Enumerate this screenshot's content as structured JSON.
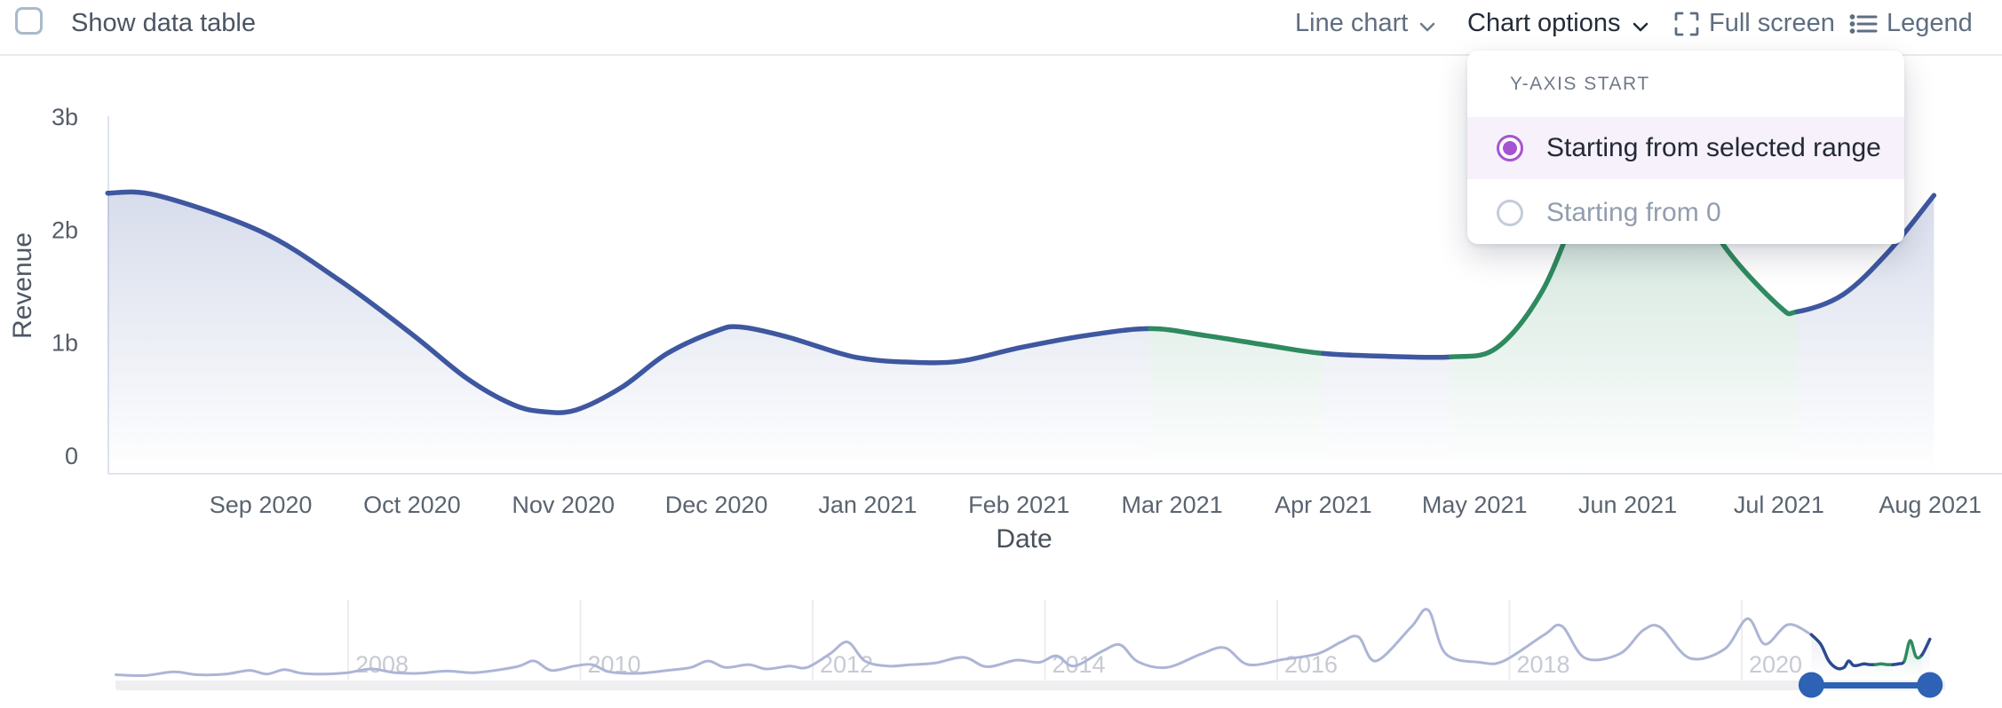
{
  "header": {
    "show_data_table": "Show data table",
    "line_chart": "Line chart",
    "chart_options": "Chart options",
    "full_screen": "Full screen",
    "legend": "Legend"
  },
  "dropdown": {
    "title": "Y-AXIS START",
    "options": [
      {
        "label": "Starting from selected range",
        "selected": true
      },
      {
        "label": "Starting from 0",
        "selected": false
      }
    ],
    "accent_color": "#a653d2"
  },
  "chart_data": {
    "type": "line",
    "title": "",
    "xlabel": "Date",
    "ylabel": "Revenue",
    "y_unit": "billions",
    "ylim": [
      0,
      3
    ],
    "y_ticks": [
      {
        "label": "0",
        "value": 0
      },
      {
        "label": "1b",
        "value": 1
      },
      {
        "label": "2b",
        "value": 2
      },
      {
        "label": "3b",
        "value": 3
      }
    ],
    "x_ticks": [
      {
        "label": "Sep 2020",
        "year": 2020.667
      },
      {
        "label": "Oct 2020",
        "year": 2020.75
      },
      {
        "label": "Nov 2020",
        "year": 2020.833
      },
      {
        "label": "Dec 2020",
        "year": 2020.917
      },
      {
        "label": "Jan 2021",
        "year": 2021.0
      },
      {
        "label": "Feb 2021",
        "year": 2021.083
      },
      {
        "label": "Mar 2021",
        "year": 2021.167
      },
      {
        "label": "Apr 2021",
        "year": 2021.25
      },
      {
        "label": "May 2021",
        "year": 2021.333
      },
      {
        "label": "Jun 2021",
        "year": 2021.417
      },
      {
        "label": "Jul 2021",
        "year": 2021.5
      },
      {
        "label": "Aug 2021",
        "year": 2021.583
      }
    ],
    "colors": {
      "blue": "#3e57a0",
      "green": "#2f8a5f",
      "light": "#adb5d6",
      "slider": "#2d62b5",
      "axis_line": "#dde3f0",
      "grid": "#ededf1",
      "tick_text": "#5a6470",
      "year_text": "#c7cad3",
      "track": "#efeff1"
    },
    "series": [
      {
        "name": "Revenue",
        "points": [
          [
            2020.583,
            2.32
          ],
          [
            2020.61,
            2.3
          ],
          [
            2020.667,
            1.98
          ],
          [
            2020.71,
            1.55
          ],
          [
            2020.75,
            1.07
          ],
          [
            2020.78,
            0.68
          ],
          [
            2020.805,
            0.45
          ],
          [
            2020.822,
            0.385
          ],
          [
            2020.84,
            0.4
          ],
          [
            2020.865,
            0.6
          ],
          [
            2020.89,
            0.9
          ],
          [
            2020.917,
            1.1
          ],
          [
            2020.93,
            1.135
          ],
          [
            2020.955,
            1.05
          ],
          [
            2020.985,
            0.9
          ],
          [
            2021.0,
            0.85
          ],
          [
            2021.02,
            0.825
          ],
          [
            2021.05,
            0.83
          ],
          [
            2021.083,
            0.95
          ],
          [
            2021.12,
            1.06
          ],
          [
            2021.155,
            1.12
          ],
          [
            2021.185,
            1.06
          ],
          [
            2021.22,
            0.97
          ],
          [
            2021.25,
            0.9
          ],
          [
            2021.285,
            0.875
          ],
          [
            2021.32,
            0.87
          ],
          [
            2021.345,
            0.95
          ],
          [
            2021.37,
            1.45
          ],
          [
            2021.395,
            2.35
          ],
          [
            2021.42,
            2.78
          ],
          [
            2021.445,
            2.55
          ],
          [
            2021.47,
            1.85
          ],
          [
            2021.5,
            1.32
          ],
          [
            2021.51,
            1.27
          ],
          [
            2021.535,
            1.42
          ],
          [
            2021.56,
            1.8
          ],
          [
            2021.585,
            2.3
          ]
        ],
        "segments": [
          {
            "color": "blue",
            "from": 0,
            "to": 20
          },
          {
            "color": "green",
            "from": 20,
            "to": 23
          },
          {
            "color": "blue",
            "from": 23,
            "to": 25
          },
          {
            "color": "green",
            "from": 25,
            "to": 33
          },
          {
            "color": "blue",
            "from": 33,
            "to": 36
          }
        ]
      }
    ],
    "overview": {
      "x_ticks": [
        {
          "label": "2008",
          "year": 2008
        },
        {
          "label": "2010",
          "year": 2010
        },
        {
          "label": "2012",
          "year": 2012
        },
        {
          "label": "2014",
          "year": 2014
        },
        {
          "label": "2016",
          "year": 2016
        },
        {
          "label": "2018",
          "year": 2018
        },
        {
          "label": "2020",
          "year": 2020
        }
      ],
      "points": [
        [
          2006.0,
          3
        ],
        [
          2006.25,
          2
        ],
        [
          2006.5,
          7
        ],
        [
          2006.7,
          3
        ],
        [
          2006.95,
          4
        ],
        [
          2007.15,
          9
        ],
        [
          2007.3,
          4
        ],
        [
          2007.45,
          10
        ],
        [
          2007.6,
          5
        ],
        [
          2007.8,
          4
        ],
        [
          2008.0,
          6
        ],
        [
          2008.2,
          11
        ],
        [
          2008.4,
          6
        ],
        [
          2008.6,
          5
        ],
        [
          2008.85,
          8
        ],
        [
          2009.1,
          6
        ],
        [
          2009.45,
          14
        ],
        [
          2009.6,
          22
        ],
        [
          2009.75,
          9
        ],
        [
          2009.95,
          15
        ],
        [
          2010.1,
          17
        ],
        [
          2010.25,
          7
        ],
        [
          2010.5,
          5
        ],
        [
          2010.75,
          9
        ],
        [
          2010.95,
          13
        ],
        [
          2011.1,
          22
        ],
        [
          2011.25,
          13
        ],
        [
          2011.45,
          17
        ],
        [
          2011.6,
          11
        ],
        [
          2011.8,
          15
        ],
        [
          2011.95,
          13
        ],
        [
          2012.15,
          32
        ],
        [
          2012.3,
          48
        ],
        [
          2012.45,
          22
        ],
        [
          2012.65,
          15
        ],
        [
          2012.85,
          17
        ],
        [
          2013.05,
          19
        ],
        [
          2013.3,
          27
        ],
        [
          2013.5,
          14
        ],
        [
          2013.75,
          23
        ],
        [
          2013.95,
          20
        ],
        [
          2014.1,
          29
        ],
        [
          2014.25,
          15
        ],
        [
          2014.5,
          36
        ],
        [
          2014.65,
          44
        ],
        [
          2014.8,
          21
        ],
        [
          2015.05,
          13
        ],
        [
          2015.35,
          32
        ],
        [
          2015.55,
          40
        ],
        [
          2015.75,
          17
        ],
        [
          2016.05,
          24
        ],
        [
          2016.35,
          32
        ],
        [
          2016.55,
          48
        ],
        [
          2016.7,
          55
        ],
        [
          2016.85,
          22
        ],
        [
          2017.15,
          68
        ],
        [
          2017.3,
          92
        ],
        [
          2017.45,
          32
        ],
        [
          2017.75,
          20
        ],
        [
          2017.95,
          22
        ],
        [
          2018.3,
          58
        ],
        [
          2018.45,
          70
        ],
        [
          2018.65,
          26
        ],
        [
          2018.95,
          32
        ],
        [
          2019.15,
          64
        ],
        [
          2019.3,
          68
        ],
        [
          2019.55,
          26
        ],
        [
          2019.85,
          38
        ],
        [
          2020.05,
          80
        ],
        [
          2020.2,
          45
        ],
        [
          2020.4,
          72
        ],
        [
          2020.6,
          58
        ]
      ],
      "selection": {
        "start": 2020.6,
        "end": 2021.62,
        "points": [
          [
            2020.6,
            58
          ],
          [
            2020.68,
            45
          ],
          [
            2020.75,
            22
          ],
          [
            2020.82,
            12
          ],
          [
            2020.88,
            13
          ],
          [
            2020.92,
            22
          ],
          [
            2020.96,
            16
          ],
          [
            2021.0,
            16
          ],
          [
            2021.05,
            18
          ],
          [
            2021.1,
            17
          ],
          [
            2021.15,
            17
          ],
          [
            2021.2,
            18
          ],
          [
            2021.25,
            17
          ],
          [
            2021.3,
            17
          ],
          [
            2021.35,
            18
          ],
          [
            2021.4,
            22
          ],
          [
            2021.45,
            50
          ],
          [
            2021.5,
            28
          ],
          [
            2021.55,
            30
          ],
          [
            2021.62,
            52
          ]
        ],
        "segments": [
          {
            "color": "blue",
            "from": 0,
            "to": 10
          },
          {
            "color": "green",
            "from": 10,
            "to": 13
          },
          {
            "color": "blue",
            "from": 13,
            "to": 15
          },
          {
            "color": "green",
            "from": 15,
            "to": 18
          },
          {
            "color": "blue",
            "from": 18,
            "to": 19
          }
        ]
      }
    }
  }
}
